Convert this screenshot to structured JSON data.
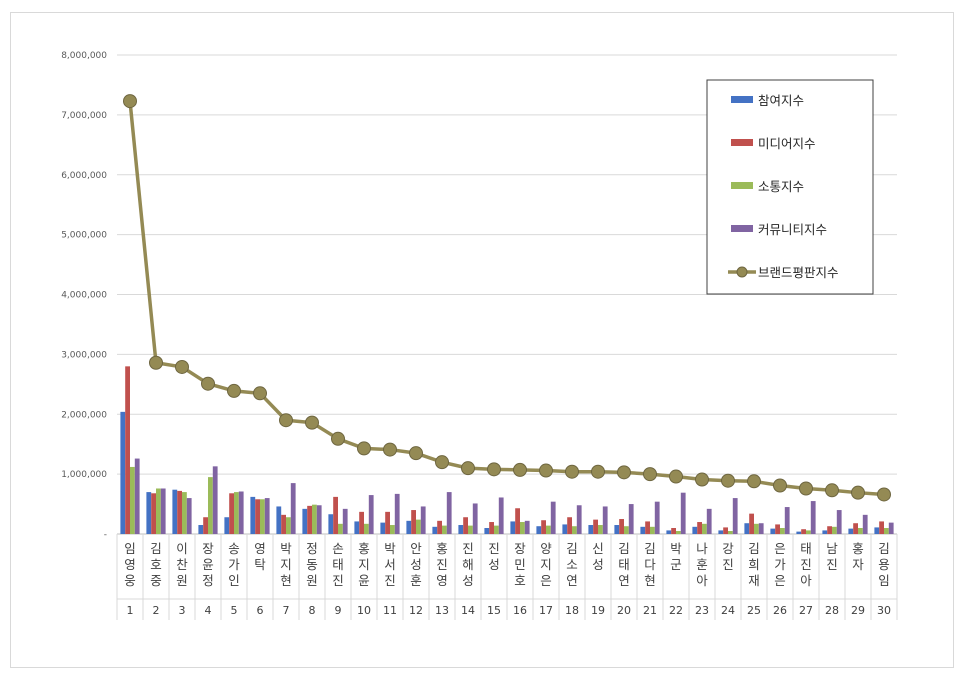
{
  "chart_data": {
    "type": "bar",
    "categories": [
      "임영웅",
      "김호중",
      "이찬원",
      "장윤정",
      "송가인",
      "영탁",
      "박지현",
      "정동원",
      "손태진",
      "홍지윤",
      "박서진",
      "안성훈",
      "홍진영",
      "진해성",
      "진성",
      "장민호",
      "양지은",
      "김소연",
      "신성",
      "김태연",
      "김다현",
      "박군",
      "나훈아",
      "강진",
      "김희재",
      "은가은",
      "태진아",
      "남진",
      "홍자",
      "김용임"
    ],
    "ranks": [
      "1",
      "2",
      "3",
      "4",
      "5",
      "6",
      "7",
      "8",
      "9",
      "10",
      "11",
      "12",
      "13",
      "14",
      "15",
      "16",
      "17",
      "18",
      "19",
      "20",
      "21",
      "22",
      "23",
      "24",
      "25",
      "26",
      "27",
      "28",
      "29",
      "30"
    ],
    "ylim": [
      0,
      8000000
    ],
    "yticks": [
      "-",
      "1,000,000",
      "2,000,000",
      "3,000,000",
      "4,000,000",
      "5,000,000",
      "6,000,000",
      "7,000,000",
      "8,000,000"
    ],
    "grid": true,
    "legend_position": "top-right",
    "series": [
      {
        "name": "참여지수",
        "type": "bar",
        "color": "#4472c4",
        "values": [
          2040000,
          700000,
          740000,
          150000,
          280000,
          620000,
          460000,
          420000,
          330000,
          210000,
          190000,
          220000,
          120000,
          150000,
          100000,
          210000,
          130000,
          160000,
          150000,
          150000,
          120000,
          60000,
          120000,
          60000,
          180000,
          90000,
          40000,
          60000,
          90000,
          110000
        ]
      },
      {
        "name": "미디어지수",
        "type": "bar",
        "color": "#c0504d",
        "values": [
          2800000,
          680000,
          720000,
          280000,
          680000,
          580000,
          320000,
          470000,
          620000,
          370000,
          370000,
          400000,
          220000,
          280000,
          200000,
          430000,
          230000,
          280000,
          240000,
          250000,
          210000,
          100000,
          200000,
          110000,
          340000,
          160000,
          80000,
          130000,
          180000,
          210000
        ]
      },
      {
        "name": "소통지수",
        "type": "bar",
        "color": "#9bbb59",
        "values": [
          1120000,
          760000,
          700000,
          950000,
          700000,
          580000,
          280000,
          490000,
          170000,
          170000,
          150000,
          240000,
          140000,
          140000,
          140000,
          200000,
          140000,
          130000,
          150000,
          130000,
          120000,
          50000,
          170000,
          50000,
          170000,
          100000,
          60000,
          120000,
          100000,
          100000
        ]
      },
      {
        "name": "커뮤니티지수",
        "type": "bar",
        "color": "#8064a2",
        "values": [
          1260000,
          760000,
          600000,
          1130000,
          710000,
          600000,
          850000,
          480000,
          420000,
          650000,
          670000,
          460000,
          700000,
          510000,
          610000,
          220000,
          540000,
          480000,
          460000,
          500000,
          540000,
          690000,
          420000,
          600000,
          180000,
          450000,
          550000,
          400000,
          320000,
          190000
        ]
      },
      {
        "name": "브랜드평판지수",
        "type": "line",
        "color": "#948a54",
        "values": [
          7230000,
          2860000,
          2790000,
          2510000,
          2390000,
          2350000,
          1900000,
          1860000,
          1590000,
          1430000,
          1410000,
          1350000,
          1200000,
          1100000,
          1080000,
          1070000,
          1060000,
          1040000,
          1040000,
          1030000,
          1000000,
          960000,
          910000,
          890000,
          880000,
          810000,
          760000,
          730000,
          690000,
          660000
        ]
      }
    ]
  }
}
